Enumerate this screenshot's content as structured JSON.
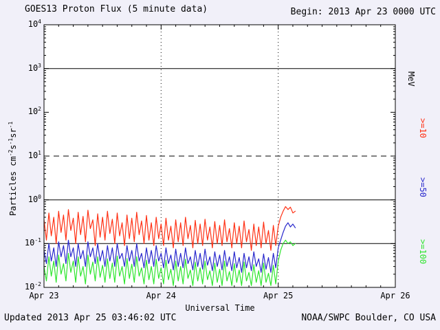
{
  "header": {
    "title": "GOES13 Proton Flux (5 minute data)",
    "begin_label": "Begin: 2013 Apr 23 0000 UTC"
  },
  "footer": {
    "updated": "Updated 2013 Apr 25 03:46:02 UTC",
    "credit": "NOAA/SWPC Boulder, CO USA"
  },
  "axes": {
    "xlabel": "Universal Time",
    "ylabel": {
      "p1": "Particles cm",
      "s1": "-2",
      "p2": "s",
      "s2": "-1",
      "p3": "sr",
      "s3": "-1"
    }
  },
  "legend": {
    "unit": "MeV",
    "items": [
      {
        "label": ">=10",
        "color": "#ff3014"
      },
      {
        "label": ">=50",
        "color": "#2727cc"
      },
      {
        "label": ">=100",
        "color": "#2ee52e"
      }
    ]
  },
  "chart_data": {
    "type": "line",
    "title": "GOES13 Proton Flux (5 minute data)",
    "xlabel": "Universal Time",
    "ylabel": "Particles cm^-2 s^-1 sr^-1",
    "y_scale": "log",
    "ylim": [
      0.01,
      10000
    ],
    "y_tick_exponents": [
      4,
      3,
      2,
      1,
      0,
      -1,
      -2
    ],
    "xlim_days": [
      0,
      3
    ],
    "x_tick_days": [
      0,
      1,
      2,
      3
    ],
    "x_tick_labels": [
      "Apr 23",
      "Apr 24",
      "Apr 25",
      "Apr 26"
    ],
    "hlines": [
      {
        "y": 1000,
        "style": "solid"
      },
      {
        "y": 10,
        "style": "dashed"
      },
      {
        "y": 1,
        "style": "solid"
      },
      {
        "y": 0.1,
        "style": "solid"
      }
    ],
    "vlines_days": [
      1,
      2
    ],
    "x_start_days": 0,
    "x_step_days": 0.02083333,
    "series": [
      {
        "name": ">=10 MeV",
        "color": "#ff3014",
        "values": [
          0.35,
          0.12,
          0.5,
          0.15,
          0.4,
          0.1,
          0.55,
          0.18,
          0.45,
          0.12,
          0.6,
          0.2,
          0.38,
          0.1,
          0.52,
          0.16,
          0.42,
          0.11,
          0.58,
          0.22,
          0.35,
          0.09,
          0.48,
          0.14,
          0.4,
          0.12,
          0.55,
          0.17,
          0.36,
          0.1,
          0.5,
          0.15,
          0.3,
          0.09,
          0.45,
          0.13,
          0.38,
          0.11,
          0.52,
          0.16,
          0.33,
          0.1,
          0.44,
          0.12,
          0.3,
          0.09,
          0.4,
          0.13,
          0.28,
          0.09,
          0.38,
          0.12,
          0.25,
          0.08,
          0.35,
          0.11,
          0.3,
          0.09,
          0.4,
          0.13,
          0.26,
          0.08,
          0.34,
          0.1,
          0.28,
          0.09,
          0.36,
          0.12,
          0.24,
          0.08,
          0.32,
          0.1,
          0.26,
          0.09,
          0.35,
          0.11,
          0.22,
          0.08,
          0.3,
          0.1,
          0.25,
          0.08,
          0.33,
          0.11,
          0.21,
          0.07,
          0.28,
          0.09,
          0.24,
          0.08,
          0.31,
          0.1,
          0.2,
          0.07,
          0.26,
          0.09,
          0.25,
          0.4,
          0.55,
          0.7,
          0.6,
          0.68,
          0.5,
          0.55
        ]
      },
      {
        "name": ">=50 MeV",
        "color": "#2727cc",
        "values": [
          0.07,
          0.035,
          0.1,
          0.04,
          0.08,
          0.03,
          0.11,
          0.05,
          0.09,
          0.035,
          0.12,
          0.05,
          0.08,
          0.03,
          0.1,
          0.045,
          0.07,
          0.03,
          0.11,
          0.05,
          0.08,
          0.035,
          0.1,
          0.04,
          0.07,
          0.03,
          0.09,
          0.04,
          0.08,
          0.03,
          0.1,
          0.045,
          0.06,
          0.03,
          0.09,
          0.04,
          0.07,
          0.03,
          0.1,
          0.04,
          0.06,
          0.028,
          0.08,
          0.035,
          0.07,
          0.03,
          0.09,
          0.04,
          0.06,
          0.028,
          0.08,
          0.035,
          0.055,
          0.025,
          0.075,
          0.03,
          0.06,
          0.028,
          0.08,
          0.035,
          0.05,
          0.025,
          0.07,
          0.03,
          0.06,
          0.026,
          0.075,
          0.032,
          0.05,
          0.024,
          0.065,
          0.03,
          0.055,
          0.025,
          0.07,
          0.03,
          0.05,
          0.024,
          0.065,
          0.028,
          0.048,
          0.022,
          0.06,
          0.028,
          0.05,
          0.024,
          0.065,
          0.03,
          0.045,
          0.022,
          0.058,
          0.026,
          0.048,
          0.022,
          0.06,
          0.028,
          0.08,
          0.12,
          0.18,
          0.25,
          0.3,
          0.24,
          0.28,
          0.23
        ]
      },
      {
        "name": ">=100 MeV",
        "color": "#2ee52e",
        "values": [
          0.03,
          0.014,
          0.05,
          0.018,
          0.04,
          0.013,
          0.055,
          0.02,
          0.035,
          0.014,
          0.06,
          0.022,
          0.04,
          0.013,
          0.05,
          0.018,
          0.03,
          0.012,
          0.055,
          0.02,
          0.038,
          0.014,
          0.05,
          0.017,
          0.032,
          0.013,
          0.045,
          0.016,
          0.036,
          0.013,
          0.052,
          0.018,
          0.03,
          0.012,
          0.046,
          0.016,
          0.034,
          0.013,
          0.05,
          0.018,
          0.028,
          0.012,
          0.042,
          0.015,
          0.03,
          0.012,
          0.044,
          0.016,
          0.028,
          0.012,
          0.042,
          0.015,
          0.026,
          0.011,
          0.04,
          0.014,
          0.03,
          0.012,
          0.044,
          0.016,
          0.025,
          0.011,
          0.038,
          0.014,
          0.028,
          0.012,
          0.04,
          0.015,
          0.024,
          0.011,
          0.036,
          0.013,
          0.026,
          0.011,
          0.04,
          0.014,
          0.023,
          0.011,
          0.035,
          0.013,
          0.025,
          0.011,
          0.038,
          0.014,
          0.022,
          0.011,
          0.033,
          0.013,
          0.024,
          0.011,
          0.036,
          0.013,
          0.021,
          0.011,
          0.032,
          0.012,
          0.04,
          0.07,
          0.1,
          0.12,
          0.1,
          0.11,
          0.09,
          0.1
        ]
      }
    ]
  }
}
